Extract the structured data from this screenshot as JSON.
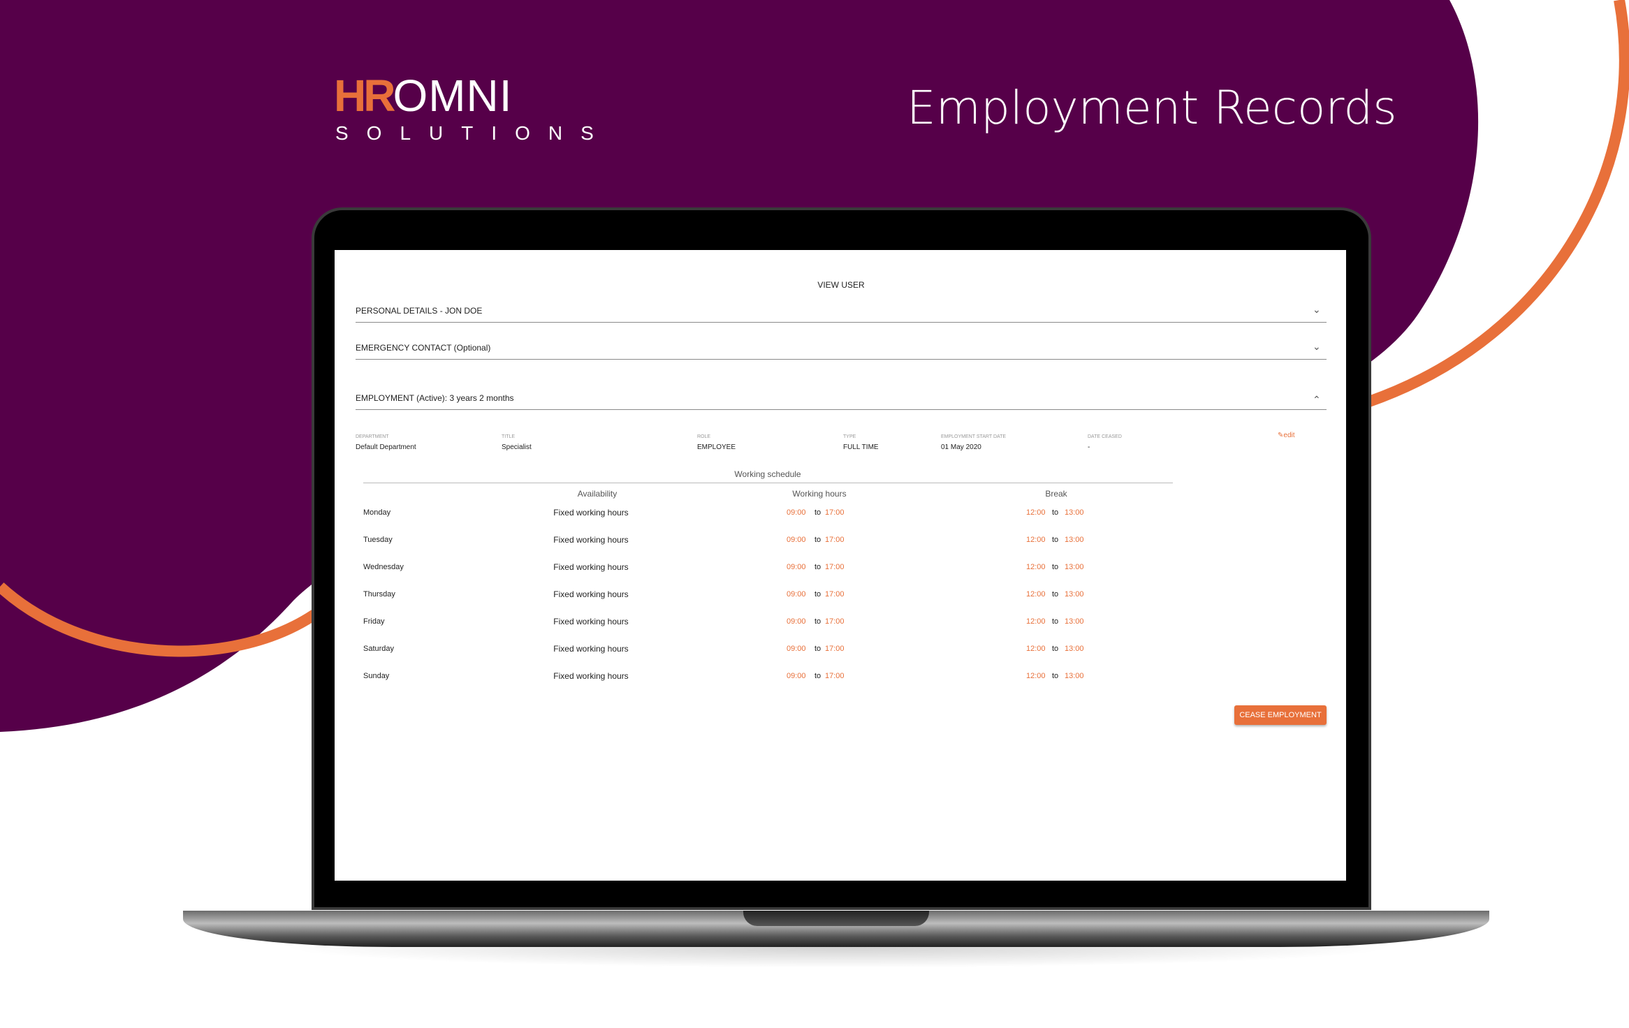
{
  "brand": {
    "logo_hr": "HR",
    "logo_omni": "OMNI",
    "logo_sub": "SOLUTIONS",
    "primary": "#560049",
    "accent": "#e8703a"
  },
  "page_title": "Employment Records",
  "view": {
    "heading": "VIEW USER",
    "sections": [
      {
        "label": "PERSONAL DETAILS - JON DOE",
        "expanded": false
      },
      {
        "label": "EMERGENCY CONTACT (Optional)",
        "expanded": false
      },
      {
        "label": "EMPLOYMENT (Active): 3 years 2 months",
        "expanded": true
      }
    ],
    "employment": {
      "fields": [
        {
          "label": "Department",
          "value": "Default Department"
        },
        {
          "label": "Title",
          "value": "Specialist"
        },
        {
          "label": "Role",
          "value": "EMPLOYEE"
        },
        {
          "label": "Type",
          "value": "FULL TIME"
        },
        {
          "label": "Employment start date",
          "value": "01 May 2020"
        },
        {
          "label": "Date ceased",
          "value": "-"
        }
      ],
      "edit_label": "edit",
      "schedule_title": "Working schedule",
      "schedule_headers": [
        "Availability",
        "Working hours",
        "Break"
      ],
      "schedule": [
        {
          "day": "Monday",
          "availability": "Fixed working hours",
          "work_from": "09:00",
          "work_to": "17:00",
          "break_from": "12:00",
          "break_to": "13:00"
        },
        {
          "day": "Tuesday",
          "availability": "Fixed working hours",
          "work_from": "09:00",
          "work_to": "17:00",
          "break_from": "12:00",
          "break_to": "13:00"
        },
        {
          "day": "Wednesday",
          "availability": "Fixed working hours",
          "work_from": "09:00",
          "work_to": "17:00",
          "break_from": "12:00",
          "break_to": "13:00"
        },
        {
          "day": "Thursday",
          "availability": "Fixed working hours",
          "work_from": "09:00",
          "work_to": "17:00",
          "break_from": "12:00",
          "break_to": "13:00"
        },
        {
          "day": "Friday",
          "availability": "Fixed working hours",
          "work_from": "09:00",
          "work_to": "17:00",
          "break_from": "12:00",
          "break_to": "13:00"
        },
        {
          "day": "Saturday",
          "availability": "Fixed working hours",
          "work_from": "09:00",
          "work_to": "17:00",
          "break_from": "12:00",
          "break_to": "13:00"
        },
        {
          "day": "Sunday",
          "availability": "Fixed working hours",
          "work_from": "09:00",
          "work_to": "17:00",
          "break_from": "12:00",
          "break_to": "13:00"
        }
      ],
      "to_label": "to",
      "cease_button": "CEASE EMPLOYMENT"
    }
  }
}
